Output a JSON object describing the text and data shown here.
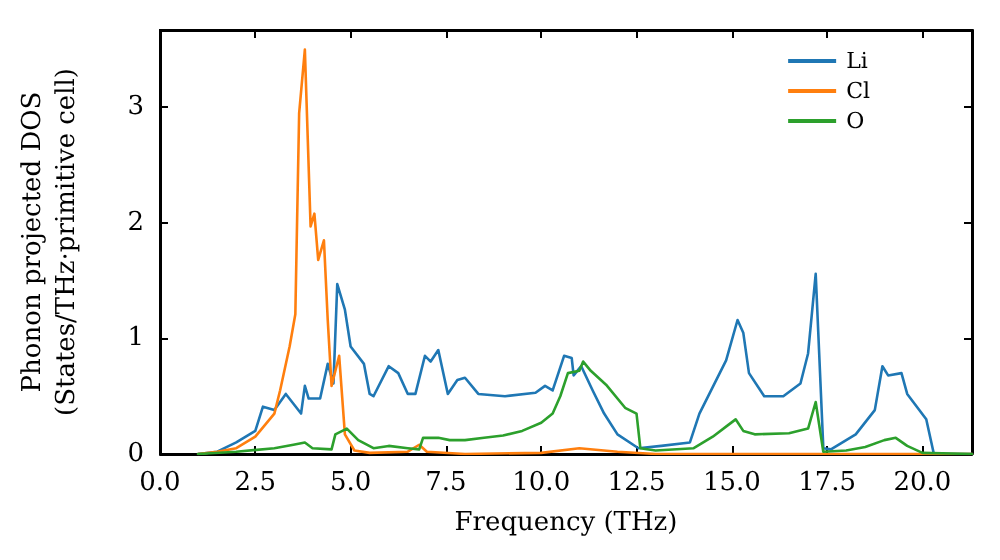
{
  "chart_data": {
    "type": "line",
    "xlabel": "Frequency (THz)",
    "ylabel": "Phonon projected DOS\n(States/THz·primitive cell)",
    "xlim": [
      0,
      21.3
    ],
    "ylim": [
      0,
      3.67
    ],
    "xticks": [
      {
        "value": 0,
        "label": "0.0"
      },
      {
        "value": 2.5,
        "label": "2.5"
      },
      {
        "value": 5,
        "label": "5.0"
      },
      {
        "value": 7.5,
        "label": "7.5"
      },
      {
        "value": 10,
        "label": "10.0"
      },
      {
        "value": 12.5,
        "label": "12.5"
      },
      {
        "value": 15,
        "label": "15.0"
      },
      {
        "value": 17.5,
        "label": "17.5"
      },
      {
        "value": 20,
        "label": "20.0"
      }
    ],
    "yticks": [
      0,
      1,
      2,
      3
    ],
    "grid": false,
    "legend": "top right",
    "marker": "none",
    "line_style": "solid",
    "series": [
      {
        "name": "Li",
        "color": "#1f77b4",
        "x": [
          1,
          1.5,
          2,
          2.5,
          2.7,
          3,
          3.3,
          3.7,
          3.8,
          3.9,
          4.2,
          4.4,
          4.55,
          4.65,
          4.85,
          5,
          5.35,
          5.5,
          5.6,
          6,
          6.25,
          6.5,
          6.7,
          6.95,
          7.1,
          7.3,
          7.55,
          7.8,
          8,
          8.35,
          9.05,
          9.85,
          10.1,
          10.3,
          10.6,
          10.8,
          10.85,
          11.05,
          11.35,
          11.65,
          12,
          12.55,
          13.15,
          13.9,
          14.15,
          14.85,
          15.15,
          15.3,
          15.45,
          15.85,
          16.35,
          16.8,
          17,
          17.2,
          17.4,
          17.6,
          18.25,
          18.75,
          18.95,
          19.1,
          19.45,
          19.6,
          20.1,
          20.3,
          21.3
        ],
        "values": [
          0,
          0.02,
          0.1,
          0.2,
          0.41,
          0.38,
          0.52,
          0.35,
          0.59,
          0.48,
          0.48,
          0.78,
          0.61,
          1.47,
          1.25,
          0.93,
          0.78,
          0.52,
          0.5,
          0.76,
          0.7,
          0.52,
          0.52,
          0.85,
          0.8,
          0.9,
          0.52,
          0.64,
          0.66,
          0.52,
          0.5,
          0.53,
          0.59,
          0.55,
          0.85,
          0.83,
          0.68,
          0.76,
          0.55,
          0.35,
          0.17,
          0.05,
          0.07,
          0.1,
          0.35,
          0.81,
          1.16,
          1.05,
          0.7,
          0.5,
          0.5,
          0.61,
          0.87,
          1.56,
          0.05,
          0.04,
          0.17,
          0.38,
          0.76,
          0.68,
          0.7,
          0.52,
          0.3,
          0,
          0
        ]
      },
      {
        "name": "Cl",
        "color": "#ff7f0e",
        "x": [
          1,
          1.5,
          2,
          2.5,
          3,
          3.15,
          3.4,
          3.55,
          3.65,
          3.8,
          3.95,
          4.05,
          4.15,
          4.3,
          4.4,
          4.5,
          4.7,
          4.85,
          5.1,
          5.5,
          6.5,
          6.8,
          7,
          8,
          10,
          11,
          12,
          13,
          21.3
        ],
        "values": [
          0,
          0.02,
          0.05,
          0.15,
          0.35,
          0.55,
          0.93,
          1.21,
          2.95,
          3.5,
          1.97,
          2.08,
          1.68,
          1.85,
          1.16,
          0.59,
          0.85,
          0.17,
          0.03,
          0.01,
          0.02,
          0.08,
          0.02,
          0,
          0.01,
          0.05,
          0.02,
          0,
          0
        ]
      },
      {
        "name": "O",
        "color": "#2ca02c",
        "x": [
          1,
          2,
          3,
          3.5,
          3.8,
          4,
          4.5,
          4.6,
          4.9,
          5.2,
          5.6,
          6,
          6.5,
          6.8,
          6.9,
          7.3,
          7.6,
          8,
          8.5,
          9,
          9.5,
          10,
          10.3,
          10.5,
          10.7,
          11,
          11.1,
          11.3,
          11.7,
          12.2,
          12.5,
          12.6,
          13,
          14,
          14.5,
          14.9,
          15.1,
          15.3,
          15.6,
          16.5,
          17,
          17.2,
          17.4,
          18,
          18.5,
          19,
          19.3,
          19.6,
          20,
          21.3
        ],
        "values": [
          0,
          0.02,
          0.05,
          0.08,
          0.1,
          0.05,
          0.04,
          0.17,
          0.22,
          0.12,
          0.05,
          0.07,
          0.05,
          0.04,
          0.14,
          0.14,
          0.12,
          0.12,
          0.14,
          0.16,
          0.2,
          0.27,
          0.35,
          0.5,
          0.7,
          0.72,
          0.8,
          0.72,
          0.6,
          0.4,
          0.35,
          0.05,
          0.03,
          0.05,
          0.15,
          0.25,
          0.3,
          0.2,
          0.17,
          0.18,
          0.22,
          0.45,
          0.02,
          0.03,
          0.06,
          0.12,
          0.14,
          0.07,
          0.01,
          0
        ]
      }
    ]
  }
}
